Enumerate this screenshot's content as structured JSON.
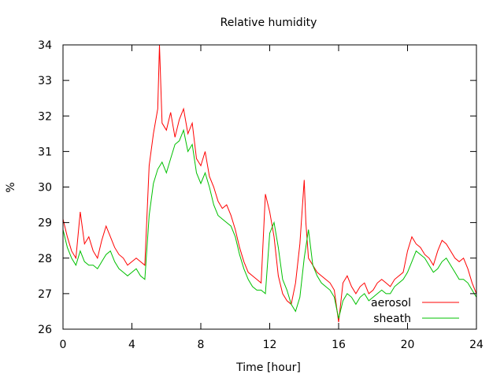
{
  "chart_data": {
    "type": "line",
    "title": "Relative humidity",
    "xlabel": "Time [hour]",
    "ylabel": "%",
    "xlim": [
      0,
      24
    ],
    "ylim": [
      26,
      34
    ],
    "xticks": [
      0,
      4,
      8,
      12,
      16,
      20,
      24
    ],
    "yticks": [
      26,
      27,
      28,
      29,
      30,
      31,
      32,
      33,
      34
    ],
    "grid": false,
    "legend": "bottom-right",
    "series": [
      {
        "name": "aerosol",
        "color": "#ff0000",
        "x": [
          0,
          0.25,
          0.5,
          0.75,
          1,
          1.25,
          1.5,
          1.75,
          2,
          2.25,
          2.5,
          2.75,
          3,
          3.25,
          3.5,
          3.75,
          4,
          4.25,
          4.5,
          4.75,
          5,
          5.25,
          5.5,
          5.6,
          5.75,
          6,
          6.25,
          6.5,
          6.75,
          7,
          7.25,
          7.5,
          7.75,
          8,
          8.25,
          8.5,
          8.75,
          9,
          9.25,
          9.5,
          9.75,
          10,
          10.25,
          10.5,
          10.75,
          11,
          11.25,
          11.5,
          11.75,
          12,
          12.25,
          12.5,
          12.75,
          13,
          13.25,
          13.5,
          13.75,
          14,
          14.1,
          14.25,
          14.5,
          14.75,
          15,
          15.25,
          15.5,
          15.75,
          16,
          16.25,
          16.5,
          16.75,
          17,
          17.25,
          17.5,
          17.75,
          18,
          18.25,
          18.5,
          18.75,
          19,
          19.25,
          19.5,
          19.75,
          20,
          20.25,
          20.5,
          20.75,
          21,
          21.25,
          21.5,
          21.75,
          22,
          22.25,
          22.5,
          22.75,
          23,
          23.25,
          23.5,
          23.75,
          24
        ],
        "values": [
          29.1,
          28.6,
          28.2,
          28.0,
          29.3,
          28.4,
          28.6,
          28.2,
          28.0,
          28.5,
          28.9,
          28.6,
          28.3,
          28.1,
          28.0,
          27.8,
          27.9,
          28.0,
          27.9,
          27.8,
          30.6,
          31.5,
          32.2,
          34.0,
          31.8,
          31.6,
          32.1,
          31.4,
          31.9,
          32.2,
          31.5,
          31.8,
          30.8,
          30.6,
          31.0,
          30.3,
          30.0,
          29.6,
          29.4,
          29.5,
          29.2,
          28.8,
          28.3,
          27.9,
          27.6,
          27.5,
          27.4,
          27.3,
          29.8,
          29.3,
          28.6,
          27.5,
          27.0,
          26.8,
          26.7,
          27.3,
          28.4,
          30.2,
          29.0,
          28.0,
          27.8,
          27.6,
          27.5,
          27.4,
          27.3,
          27.1,
          26.2,
          27.3,
          27.5,
          27.2,
          27.0,
          27.2,
          27.3,
          27.0,
          27.1,
          27.3,
          27.4,
          27.3,
          27.2,
          27.4,
          27.5,
          27.6,
          28.2,
          28.6,
          28.4,
          28.3,
          28.1,
          28.0,
          27.8,
          28.2,
          28.5,
          28.4,
          28.2,
          28.0,
          27.9,
          28.0,
          27.7,
          27.3,
          27.0
        ]
      },
      {
        "name": "sheath",
        "color": "#00c000",
        "x": [
          0,
          0.25,
          0.5,
          0.75,
          1,
          1.25,
          1.5,
          1.75,
          2,
          2.25,
          2.5,
          2.75,
          3,
          3.25,
          3.5,
          3.75,
          4,
          4.25,
          4.5,
          4.75,
          5,
          5.25,
          5.5,
          5.75,
          6,
          6.25,
          6.5,
          6.75,
          7,
          7.25,
          7.5,
          7.75,
          8,
          8.25,
          8.5,
          8.75,
          9,
          9.25,
          9.5,
          9.75,
          10,
          10.25,
          10.5,
          10.75,
          11,
          11.25,
          11.5,
          11.75,
          12,
          12.25,
          12.5,
          12.75,
          13,
          13.25,
          13.5,
          13.75,
          14,
          14.25,
          14.5,
          14.75,
          15,
          15.25,
          15.5,
          15.75,
          16,
          16.25,
          16.5,
          16.75,
          17,
          17.25,
          17.5,
          17.75,
          18,
          18.25,
          18.5,
          18.75,
          19,
          19.25,
          19.5,
          19.75,
          20,
          20.25,
          20.5,
          20.75,
          21,
          21.25,
          21.5,
          21.75,
          22,
          22.25,
          22.5,
          22.75,
          23,
          23.25,
          23.5,
          23.75,
          24
        ],
        "values": [
          28.8,
          28.3,
          28.0,
          27.8,
          28.2,
          27.9,
          27.8,
          27.8,
          27.7,
          27.9,
          28.1,
          28.2,
          27.9,
          27.7,
          27.6,
          27.5,
          27.6,
          27.7,
          27.5,
          27.4,
          29.2,
          30.1,
          30.5,
          30.7,
          30.4,
          30.8,
          31.2,
          31.3,
          31.6,
          31.0,
          31.2,
          30.4,
          30.1,
          30.4,
          30.0,
          29.5,
          29.2,
          29.1,
          29.0,
          28.9,
          28.6,
          28.1,
          27.7,
          27.4,
          27.2,
          27.1,
          27.1,
          27.0,
          28.7,
          29.0,
          28.3,
          27.4,
          27.1,
          26.7,
          26.5,
          26.9,
          28.0,
          28.8,
          27.8,
          27.5,
          27.3,
          27.2,
          27.1,
          26.9,
          26.3,
          26.8,
          27.0,
          26.9,
          26.7,
          26.9,
          27.0,
          26.8,
          26.9,
          27.0,
          27.1,
          27.0,
          27.0,
          27.2,
          27.3,
          27.4,
          27.6,
          27.9,
          28.2,
          28.1,
          28.0,
          27.8,
          27.6,
          27.7,
          27.9,
          28.0,
          27.8,
          27.6,
          27.4,
          27.4,
          27.3,
          27.1,
          26.9
        ]
      }
    ]
  }
}
